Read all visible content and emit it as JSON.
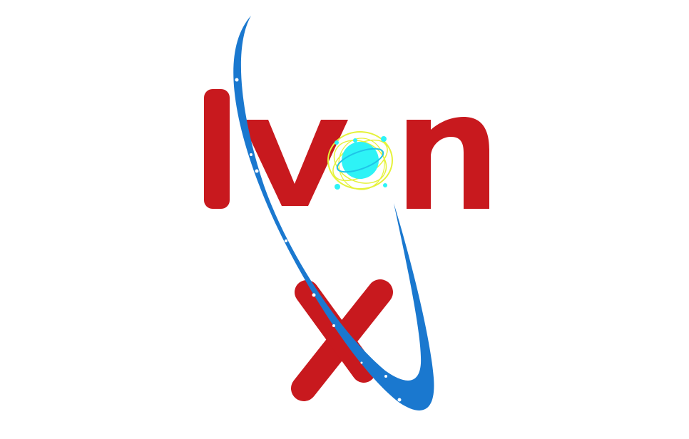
{
  "logo": {
    "text": "Ivan X",
    "colors": {
      "letters": "#c8191e",
      "swoosh": "#1a78cf",
      "planet": "#2ef3f6",
      "orbits": "#e5f23a",
      "stars": "#ffffff",
      "background": "#ffffff"
    },
    "icons": [
      "planet-icon",
      "orbit-swoosh",
      "star-dots"
    ]
  }
}
